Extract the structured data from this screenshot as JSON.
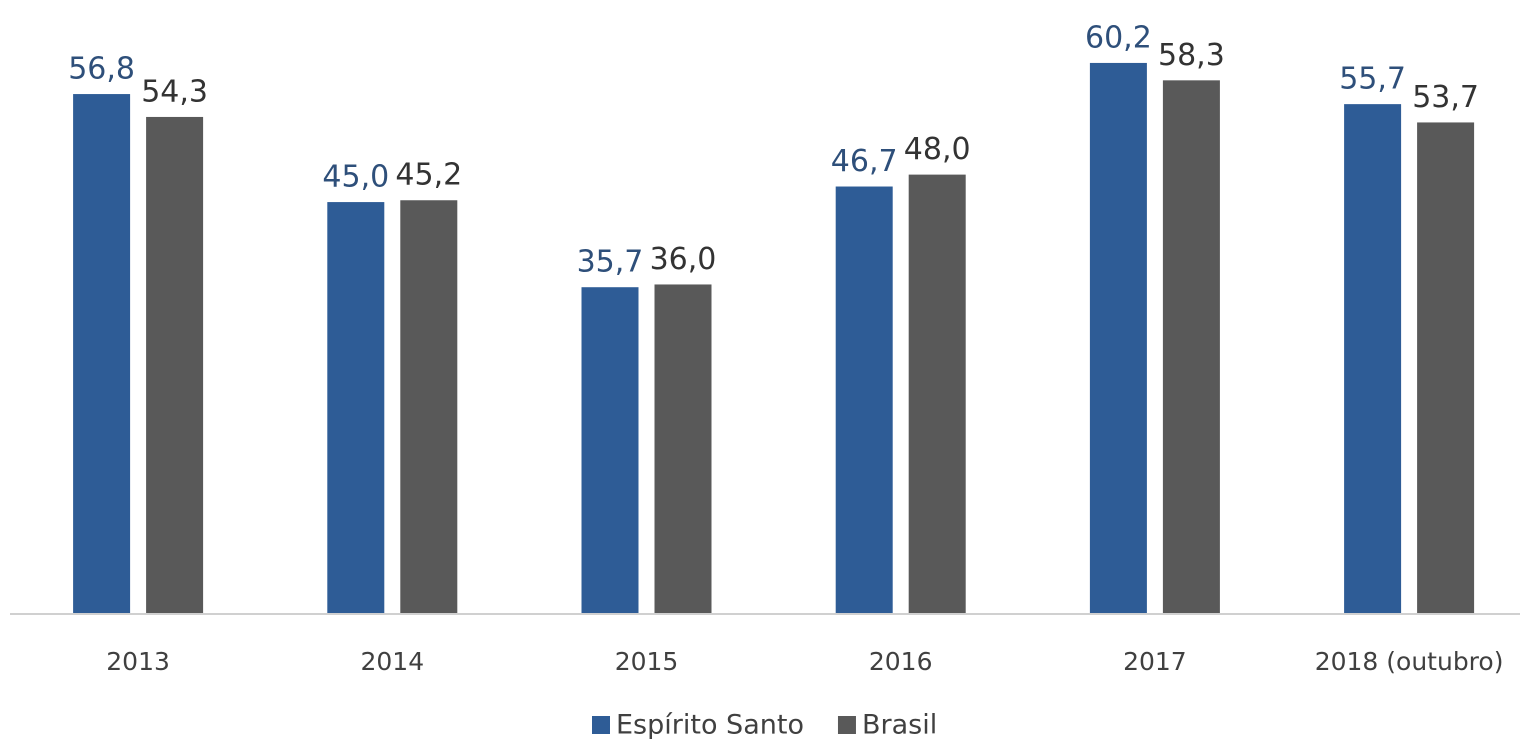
{
  "chart_data": {
    "type": "bar",
    "categories": [
      "2013",
      "2014",
      "2015",
      "2016",
      "2017",
      "2018 (outubro)"
    ],
    "series": [
      {
        "name": "Espírito Santo",
        "color": "#2e5c96",
        "label_color": "#2e4f7a",
        "values": [
          56.8,
          45.0,
          35.7,
          46.7,
          60.2,
          55.7
        ],
        "value_labels": [
          "56,8",
          "45,0",
          "35,7",
          "46,7",
          "60,2",
          "55,7"
        ]
      },
      {
        "name": "Brasil",
        "color": "#595959",
        "label_color": "#333333",
        "values": [
          54.3,
          45.2,
          36.0,
          48.0,
          58.3,
          53.7
        ],
        "value_labels": [
          "54,3",
          "45,2",
          "36,0",
          "48,0",
          "58,3",
          "53,7"
        ]
      }
    ],
    "ylim": [
      0,
      65
    ],
    "legend": "bottom"
  }
}
